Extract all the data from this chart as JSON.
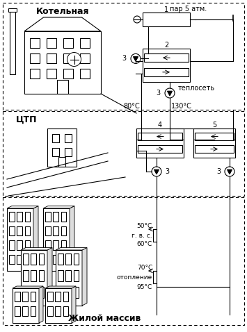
{
  "title_top": "Котельная",
  "title_mid": "ЦТП",
  "title_bot": "Жилой массив",
  "label_par": "пар 5 атм.",
  "label_teploset": "теплосеть",
  "label_80": "80°С",
  "label_130": "130°С",
  "label_50": "50°С",
  "label_60": "60°С",
  "label_gvs": "г. в. с.",
  "label_70": "70°С",
  "label_95": "95°С",
  "label_otoplenie": "отопление",
  "label_1": "1",
  "label_2": "2",
  "label_3": "3",
  "label_4": "4",
  "label_5": "5",
  "bg_color": "#ffffff",
  "line_color": "#000000"
}
